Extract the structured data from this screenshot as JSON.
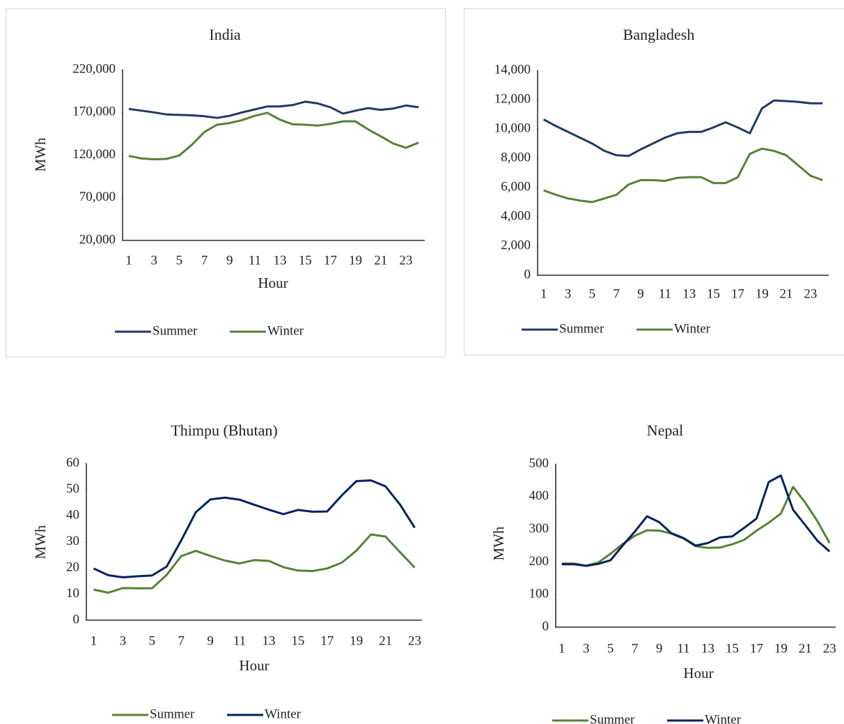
{
  "chart_data": [
    {
      "type": "line",
      "title": "India",
      "x_label": "Hour",
      "y_label": "MWh",
      "categories": [
        "1",
        null,
        "3",
        null,
        "5",
        null,
        "7",
        null,
        "9",
        null,
        "11",
        null,
        "13",
        null,
        "15",
        null,
        "17",
        null,
        "19",
        null,
        "21",
        null,
        "23",
        null
      ],
      "ylim": [
        20000,
        220000
      ],
      "yticks": [
        {
          "value": 20000,
          "label": "20,000"
        },
        {
          "value": 70000,
          "label": "70,000"
        },
        {
          "value": 120000,
          "label": "120,000"
        },
        {
          "value": 170000,
          "label": "170,000"
        },
        {
          "value": 220000,
          "label": "220,000"
        }
      ],
      "series": [
        {
          "name": "Summer",
          "color": "#203864",
          "values": [
            174000,
            172000,
            170000,
            167500,
            167000,
            166500,
            165500,
            163500,
            166000,
            170000,
            173500,
            177000,
            177000,
            178500,
            182500,
            180500,
            176000,
            168500,
            172000,
            175000,
            173000,
            174500,
            178000,
            176000
          ]
        },
        {
          "name": "Winter",
          "color": "#548235",
          "values": [
            119000,
            116000,
            115000,
            115500,
            119500,
            132000,
            147000,
            155500,
            157500,
            161000,
            166000,
            169500,
            161500,
            156000,
            155500,
            154500,
            156500,
            159500,
            159500,
            150000,
            142000,
            133500,
            128500,
            134500
          ]
        }
      ],
      "legend": "bottom"
    },
    {
      "type": "line",
      "title": "Bangladesh",
      "categories": [
        "1",
        null,
        "3",
        null,
        "5",
        null,
        "7",
        null,
        "9",
        null,
        "11",
        null,
        "13",
        null,
        "15",
        null,
        "17",
        null,
        "19",
        null,
        "21",
        null,
        "23",
        null
      ],
      "ylim": [
        0,
        14000
      ],
      "yticks": [
        0,
        {
          "value": 2000,
          "label": "2,000"
        },
        {
          "value": 4000,
          "label": "4,000"
        },
        {
          "value": 6000,
          "label": "6,000"
        },
        {
          "value": 8000,
          "label": "8,000"
        },
        {
          "value": 10000,
          "label": "10,000"
        },
        {
          "value": 12000,
          "label": "12,000"
        },
        {
          "value": 14000,
          "label": "14,000"
        }
      ],
      "series": [
        {
          "name": "Summer",
          "color": "#203864",
          "values": [
            10650,
            10200,
            9800,
            9400,
            9000,
            8500,
            8200,
            8150,
            8600,
            9000,
            9400,
            9700,
            9800,
            9800,
            10100,
            10450,
            10100,
            9700,
            11400,
            11950,
            11900,
            11850,
            11750,
            11750
          ]
        },
        {
          "name": "Winter",
          "color": "#548235",
          "values": [
            5800,
            5500,
            5250,
            5100,
            5000,
            5250,
            5500,
            6200,
            6500,
            6500,
            6450,
            6650,
            6700,
            6700,
            6300,
            6300,
            6700,
            8300,
            8650,
            8500,
            8200,
            7500,
            6800,
            6500
          ]
        }
      ],
      "legend": "bottom"
    },
    {
      "type": "line",
      "title": "Thimpu (Bhutan)",
      "x_label": "Hour",
      "y_label": "MWh",
      "categories": [
        "1",
        null,
        "3",
        null,
        "5",
        null,
        "7",
        null,
        "9",
        null,
        "11",
        null,
        "13",
        null,
        "15",
        null,
        "17",
        null,
        "19",
        null,
        "21",
        null,
        "23"
      ],
      "ylim": [
        0,
        60
      ],
      "yticks": [
        0,
        10,
        20,
        30,
        40,
        50,
        60
      ],
      "series": [
        {
          "name": "Summer",
          "color": "#548235",
          "values": [
            11.7,
            10.5,
            12.3,
            12.2,
            12.2,
            17.3,
            24.5,
            26.5,
            24.6,
            22.8,
            21.7,
            23,
            22.7,
            20.3,
            19,
            18.8,
            19.8,
            22,
            26.6,
            32.8,
            32,
            26,
            20.1
          ]
        },
        {
          "name": "Winter",
          "color": "#002060",
          "values": [
            19.8,
            17.2,
            16.4,
            16.8,
            17.1,
            20.5,
            30.5,
            41.3,
            46.2,
            46.9,
            46.1,
            44.2,
            42.3,
            40.6,
            42.2,
            41.5,
            41.6,
            47.7,
            53.2,
            53.5,
            51.2,
            44.2,
            35.4
          ]
        }
      ],
      "legend": "bottom"
    },
    {
      "type": "line",
      "title": "Nepal",
      "x_label": "Hour",
      "y_label": "MWh",
      "categories": [
        "1",
        null,
        "3",
        null,
        "5",
        null,
        "7",
        null,
        "9",
        null,
        "11",
        null,
        "13",
        null,
        "15",
        null,
        "17",
        null,
        "19",
        null,
        "21",
        null,
        "23"
      ],
      "ylim": [
        0,
        500
      ],
      "yticks": [
        0,
        100,
        200,
        300,
        400,
        500
      ],
      "series": [
        {
          "name": "Summer",
          "color": "#548235",
          "values": [
            195,
            195,
            188,
            198,
            225,
            255,
            280,
            297,
            296,
            287,
            272,
            248,
            243,
            244,
            254,
            268,
            296,
            320,
            348,
            430,
            382,
            325,
            258
          ]
        },
        {
          "name": "Winter",
          "color": "#002060",
          "values": [
            193,
            193,
            188,
            194,
            205,
            250,
            293,
            340,
            322,
            288,
            273,
            250,
            258,
            275,
            278,
            305,
            333,
            445,
            465,
            360,
            313,
            265,
            232
          ]
        }
      ],
      "legend": "bottom"
    }
  ]
}
